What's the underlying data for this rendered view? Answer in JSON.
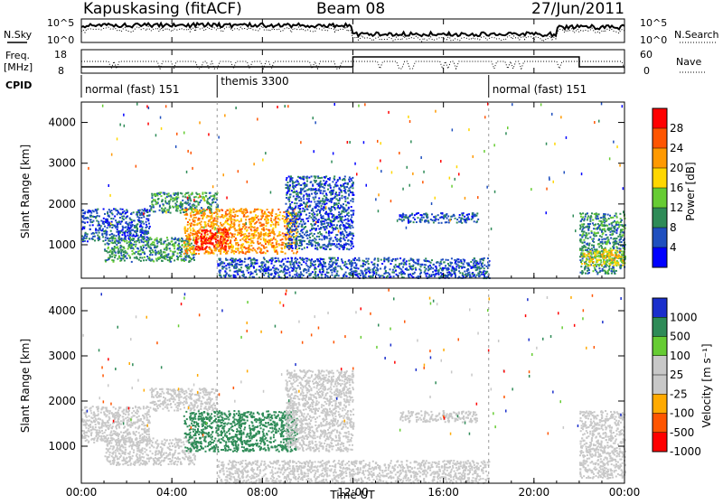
{
  "header": {
    "station": "Kapuskasing (fitACF)",
    "beam": "Beam 08",
    "date": "27/Jun/2011"
  },
  "noise_panel": {
    "left_label": "N.Sky",
    "right_label": "N.Search",
    "left_ticks": [
      "10^5",
      "10^0"
    ],
    "right_ticks": [
      "10^5",
      "10^0"
    ]
  },
  "freq_panel": {
    "left_label_1": "Freq.",
    "left_label_2": "[MHz]",
    "right_label": "Nave",
    "left_ticks": [
      "18",
      "8"
    ],
    "right_ticks": [
      "60",
      "0"
    ]
  },
  "cpid": {
    "label": "CPID",
    "modes": [
      {
        "name": "normal (fast) 151",
        "start_hour": 0,
        "end_hour": 6
      },
      {
        "name": "themis 3300",
        "start_hour": 6,
        "end_hour": 18
      },
      {
        "name": "normal (fast) 151",
        "start_hour": 18,
        "end_hour": 24
      }
    ]
  },
  "x_axis": {
    "label": "Time UT",
    "ticks": [
      "00:00",
      "04:00",
      "08:00",
      "12:00",
      "16:00",
      "20:00",
      "00:00"
    ]
  },
  "power_panel": {
    "ylabel": "Slant Range [km]",
    "yticks": [
      "4000",
      "3000",
      "2000",
      "1000"
    ],
    "colorbar_label": "Power [dB]",
    "colorbar_ticks": [
      "28",
      "24",
      "20",
      "16",
      "12",
      "8",
      "4"
    ],
    "colors": [
      "#0000ff",
      "#1f4fbf",
      "#2e8b57",
      "#66cc33",
      "#ffd700",
      "#ff9900",
      "#ff5500",
      "#ff0000"
    ]
  },
  "velocity_panel": {
    "ylabel": "Slant Range [km]",
    "yticks": [
      "4000",
      "3000",
      "2000",
      "1000"
    ],
    "colorbar_label": "Velocity [m s⁻¹]",
    "colorbar_ticks": [
      "1000",
      "500",
      "100",
      "25",
      "-25",
      "-100",
      "-500",
      "-1000"
    ],
    "colors": [
      "#1a2fcc",
      "#2e8b57",
      "#66cc33",
      "#c8c8c8",
      "#c8c8c8",
      "#ffaa00",
      "#ff5500",
      "#ff0000"
    ]
  },
  "chart_data": {
    "type": "heatmap",
    "x_range_hours": [
      0,
      24
    ],
    "y_range_km": [
      180,
      4500
    ],
    "power_scatter_bands": [
      {
        "start_h": 0.0,
        "end_h": 3.0,
        "range_lo": 1100,
        "range_hi": 1900,
        "level": 1
      },
      {
        "start_h": 1.0,
        "end_h": 5.0,
        "range_lo": 600,
        "range_hi": 1200,
        "level": 2
      },
      {
        "start_h": 3.0,
        "end_h": 6.0,
        "range_lo": 1800,
        "range_hi": 2300,
        "level": 2
      },
      {
        "start_h": 4.5,
        "end_h": 9.5,
        "range_lo": 800,
        "range_hi": 1900,
        "level": 5
      },
      {
        "start_h": 5.0,
        "end_h": 6.5,
        "range_lo": 900,
        "range_hi": 1400,
        "level": 7
      },
      {
        "start_h": 9.0,
        "end_h": 12.0,
        "range_lo": 900,
        "range_hi": 2700,
        "level": 1
      },
      {
        "start_h": 14.0,
        "end_h": 17.5,
        "range_lo": 1550,
        "range_hi": 1800,
        "level": 1
      },
      {
        "start_h": 22.0,
        "end_h": 24.0,
        "range_lo": 300,
        "range_hi": 1800,
        "level": 2
      },
      {
        "start_h": 22.0,
        "end_h": 24.0,
        "range_lo": 500,
        "range_hi": 900,
        "level": 4
      },
      {
        "start_h": 6.0,
        "end_h": 18.0,
        "range_lo": 200,
        "range_hi": 700,
        "level": 1
      }
    ],
    "velocity_scatter_bands": [
      {
        "start_h": 0.0,
        "end_h": 3.0,
        "range_lo": 1100,
        "range_hi": 1900,
        "level": 3
      },
      {
        "start_h": 1.0,
        "end_h": 5.0,
        "range_lo": 600,
        "range_hi": 1200,
        "level": 3
      },
      {
        "start_h": 3.0,
        "end_h": 6.0,
        "range_lo": 1800,
        "range_hi": 2300,
        "level": 3
      },
      {
        "start_h": 4.5,
        "end_h": 9.5,
        "range_lo": 900,
        "range_hi": 1800,
        "level": 1
      },
      {
        "start_h": 9.0,
        "end_h": 12.0,
        "range_lo": 900,
        "range_hi": 2700,
        "level": 3
      },
      {
        "start_h": 14.0,
        "end_h": 17.5,
        "range_lo": 1550,
        "range_hi": 1800,
        "level": 3
      },
      {
        "start_h": 22.0,
        "end_h": 24.0,
        "range_lo": 300,
        "range_hi": 1800,
        "level": 3
      },
      {
        "start_h": 6.0,
        "end_h": 18.0,
        "range_lo": 200,
        "range_hi": 700,
        "level": 4
      }
    ]
  }
}
